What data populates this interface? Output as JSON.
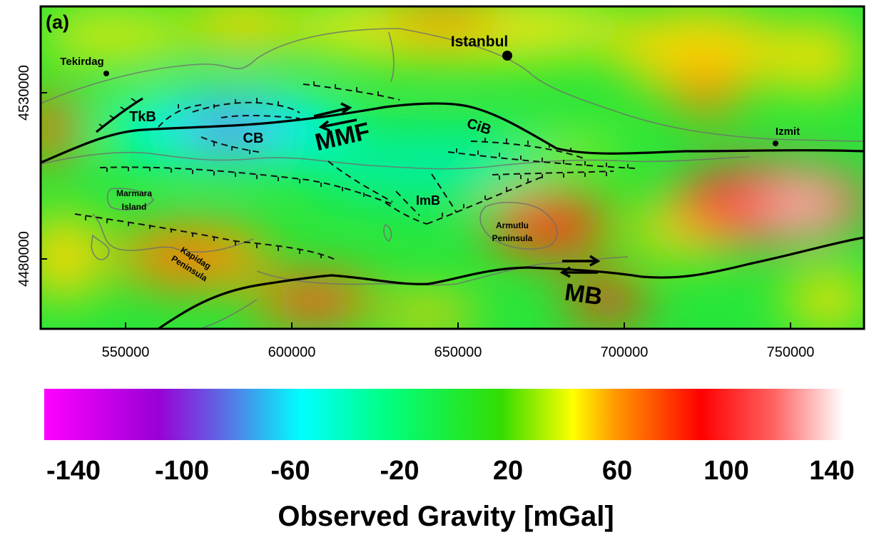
{
  "panel_label": "(a)",
  "map": {
    "x_ticks": [
      "550000",
      "600000",
      "650000",
      "700000",
      "750000"
    ],
    "y_ticks": [
      "4530000",
      "4480000"
    ],
    "places": {
      "istanbul": "Istanbul",
      "tekirdag": "Tekirdag",
      "izmit": "Izmit",
      "marmara_island": [
        "Marmara",
        "Island"
      ],
      "armutlu": [
        "Armutlu",
        "Peninsula"
      ],
      "kapidag": [
        "Kapidag",
        "Peninsula"
      ]
    },
    "structures": {
      "tkb": "TkB",
      "cb": "CB",
      "cib": "CiB",
      "imb": "ImB",
      "mmf": "MMF",
      "mb": "MB"
    }
  },
  "colorbar": {
    "ticks": [
      "-140",
      "-100",
      "-60",
      "-20",
      "20",
      "60",
      "100",
      "140"
    ],
    "title": "Observed Gravity [mGal]",
    "stops": [
      {
        "value": -140,
        "color": "#ff00ff"
      },
      {
        "value": -100,
        "color": "#9a00d6"
      },
      {
        "value": -75,
        "color": "#5577e6"
      },
      {
        "value": -50,
        "color": "#00ffff"
      },
      {
        "value": -20,
        "color": "#00ff80"
      },
      {
        "value": 20,
        "color": "#33dd00"
      },
      {
        "value": 45,
        "color": "#ffff00"
      },
      {
        "value": 60,
        "color": "#ff9900"
      },
      {
        "value": 90,
        "color": "#ff0000"
      },
      {
        "value": 115,
        "color": "#ff6060"
      },
      {
        "value": 140,
        "color": "#ffffff"
      }
    ]
  }
}
